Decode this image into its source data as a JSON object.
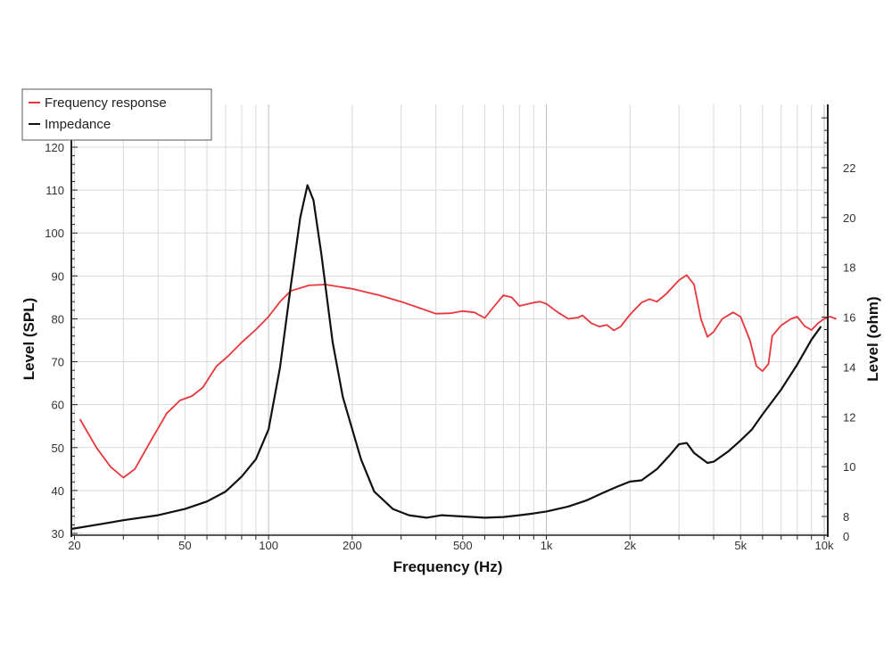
{
  "chart_data": {
    "type": "line",
    "xlabel": "Frequency (Hz)",
    "ylabel_left": "Level (SPL)",
    "ylabel_right": "Level (ohm)",
    "x_scale": "log",
    "xlim": [
      20,
      10000
    ],
    "ylim_left": [
      30,
      120
    ],
    "ylim_right": [
      0,
      24
    ],
    "grid": true,
    "legend_position": "top-left",
    "x_ticks": [
      {
        "value": 20,
        "label": "20"
      },
      {
        "value": 50,
        "label": "50"
      },
      {
        "value": 100,
        "label": "100"
      },
      {
        "value": 200,
        "label": "200"
      },
      {
        "value": 500,
        "label": "500"
      },
      {
        "value": 1000,
        "label": "1k"
      },
      {
        "value": 2000,
        "label": "2k"
      },
      {
        "value": 5000,
        "label": "5k"
      },
      {
        "value": 10000,
        "label": "10k"
      }
    ],
    "y_left_ticks": [
      {
        "value": 30,
        "label": "30"
      },
      {
        "value": 40,
        "label": "40"
      },
      {
        "value": 50,
        "label": "50"
      },
      {
        "value": 60,
        "label": "60"
      },
      {
        "value": 70,
        "label": "70"
      },
      {
        "value": 80,
        "label": "80"
      },
      {
        "value": 90,
        "label": "90"
      },
      {
        "value": 100,
        "label": "100"
      },
      {
        "value": 110,
        "label": "110"
      },
      {
        "value": 120,
        "label": "120"
      }
    ],
    "y_right_ticks": [
      {
        "value": 0,
        "label": "0"
      },
      {
        "value": 8,
        "label": "8"
      },
      {
        "value": 10,
        "label": "10"
      },
      {
        "value": 12,
        "label": "12"
      },
      {
        "value": 14,
        "label": "14"
      },
      {
        "value": 16,
        "label": "16"
      },
      {
        "value": 18,
        "label": "18"
      },
      {
        "value": 20,
        "label": "20"
      },
      {
        "value": 22,
        "label": "22"
      }
    ],
    "series": [
      {
        "name": "Frequency response",
        "axis": "left",
        "color": "#e8373c",
        "points": [
          [
            21,
            56.5
          ],
          [
            24,
            50
          ],
          [
            27,
            45.5
          ],
          [
            30,
            43
          ],
          [
            33,
            45
          ],
          [
            38,
            52
          ],
          [
            43,
            58
          ],
          [
            48,
            61
          ],
          [
            53,
            62
          ],
          [
            58,
            64
          ],
          [
            65,
            69
          ],
          [
            72,
            71.5
          ],
          [
            80,
            74.5
          ],
          [
            90,
            77.5
          ],
          [
            100,
            80.5
          ],
          [
            110,
            84
          ],
          [
            120,
            86.5
          ],
          [
            140,
            87.8
          ],
          [
            160,
            88
          ],
          [
            200,
            87
          ],
          [
            250,
            85.5
          ],
          [
            300,
            84
          ],
          [
            350,
            82.5
          ],
          [
            400,
            81.2
          ],
          [
            450,
            81.3
          ],
          [
            500,
            81.8
          ],
          [
            550,
            81.5
          ],
          [
            600,
            80.2
          ],
          [
            650,
            83
          ],
          [
            700,
            85.5
          ],
          [
            750,
            85
          ],
          [
            800,
            83
          ],
          [
            900,
            83.8
          ],
          [
            950,
            84
          ],
          [
            1000,
            83.5
          ],
          [
            1100,
            81.5
          ],
          [
            1200,
            80
          ],
          [
            1300,
            80.3
          ],
          [
            1350,
            80.8
          ],
          [
            1450,
            79
          ],
          [
            1550,
            78.2
          ],
          [
            1650,
            78.6
          ],
          [
            1750,
            77.3
          ],
          [
            1850,
            78.2
          ],
          [
            2000,
            81
          ],
          [
            2200,
            83.8
          ],
          [
            2350,
            84.6
          ],
          [
            2500,
            84
          ],
          [
            2700,
            85.8
          ],
          [
            3000,
            89
          ],
          [
            3200,
            90.2
          ],
          [
            3400,
            88
          ],
          [
            3600,
            80
          ],
          [
            3800,
            75.8
          ],
          [
            4000,
            77
          ],
          [
            4300,
            80
          ],
          [
            4700,
            81.5
          ],
          [
            5000,
            80.5
          ],
          [
            5400,
            75
          ],
          [
            5700,
            69
          ],
          [
            6000,
            67.8
          ],
          [
            6300,
            69.5
          ],
          [
            6500,
            76
          ],
          [
            7000,
            78.5
          ],
          [
            7600,
            80
          ],
          [
            8000,
            80.5
          ],
          [
            8500,
            78.3
          ],
          [
            9000,
            77.4
          ],
          [
            9500,
            79
          ],
          [
            10000,
            80
          ],
          [
            10500,
            80.5
          ],
          [
            11000,
            80
          ]
        ]
      },
      {
        "name": "Impedance",
        "axis": "right",
        "color": "#111111",
        "points": [
          [
            19.5,
            7.5
          ],
          [
            25,
            7.7
          ],
          [
            30,
            7.85
          ],
          [
            40,
            8.05
          ],
          [
            50,
            8.3
          ],
          [
            60,
            8.6
          ],
          [
            70,
            9
          ],
          [
            80,
            9.6
          ],
          [
            90,
            10.3
          ],
          [
            100,
            11.5
          ],
          [
            110,
            14
          ],
          [
            120,
            17.2
          ],
          [
            130,
            20
          ],
          [
            138,
            21.3
          ],
          [
            145,
            20.7
          ],
          [
            155,
            18.5
          ],
          [
            170,
            15
          ],
          [
            185,
            12.8
          ],
          [
            200,
            11.5
          ],
          [
            215,
            10.3
          ],
          [
            240,
            9
          ],
          [
            280,
            8.3
          ],
          [
            320,
            8.05
          ],
          [
            370,
            7.95
          ],
          [
            420,
            8.05
          ],
          [
            500,
            8.0
          ],
          [
            600,
            7.95
          ],
          [
            700,
            7.98
          ],
          [
            800,
            8.05
          ],
          [
            900,
            8.12
          ],
          [
            1000,
            8.2
          ],
          [
            1200,
            8.4
          ],
          [
            1400,
            8.65
          ],
          [
            1600,
            8.95
          ],
          [
            1800,
            9.2
          ],
          [
            2000,
            9.4
          ],
          [
            2200,
            9.45
          ],
          [
            2500,
            9.9
          ],
          [
            2800,
            10.5
          ],
          [
            3000,
            10.9
          ],
          [
            3200,
            10.95
          ],
          [
            3400,
            10.55
          ],
          [
            3800,
            10.15
          ],
          [
            4000,
            10.2
          ],
          [
            4500,
            10.6
          ],
          [
            5000,
            11.05
          ],
          [
            5500,
            11.5
          ],
          [
            6000,
            12.1
          ],
          [
            7000,
            13.1
          ],
          [
            8000,
            14.1
          ],
          [
            9000,
            15.1
          ],
          [
            9700,
            15.6
          ]
        ]
      }
    ]
  }
}
